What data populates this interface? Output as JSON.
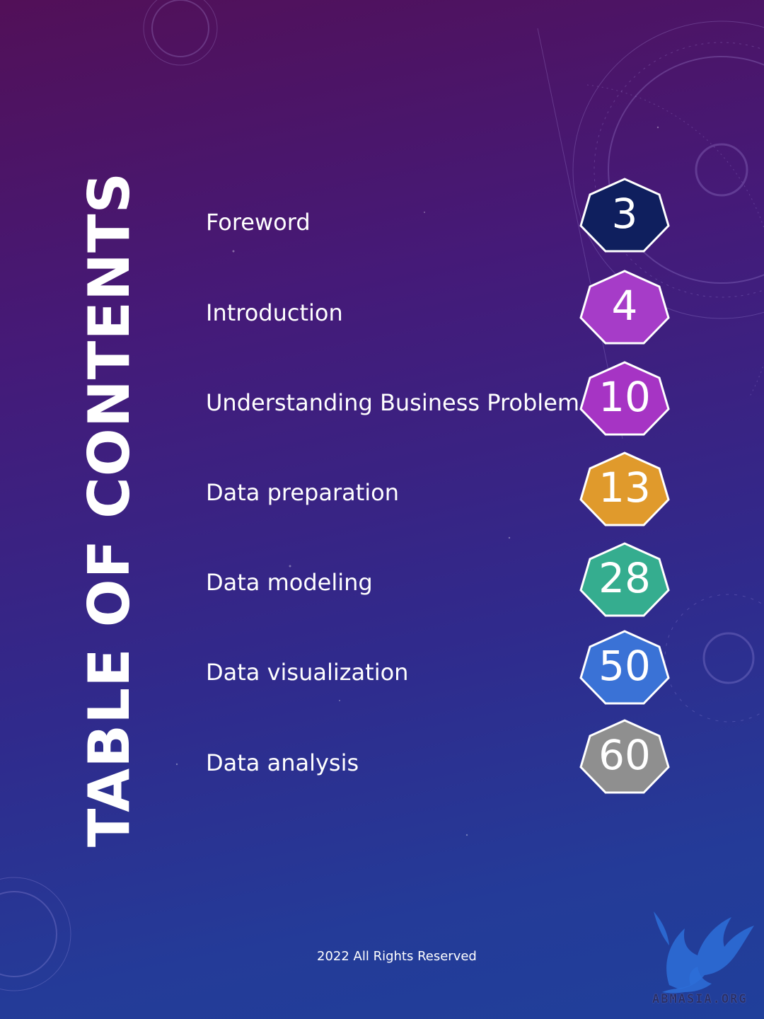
{
  "page": {
    "title": "TABLE OF CONTENTS",
    "footer": "2022 All Rights Reserved",
    "brand": "ABMASIA.ORG"
  },
  "toc": [
    {
      "label": "Foreword",
      "page": "3",
      "color": "#0f1f5e"
    },
    {
      "label": "Introduction",
      "page": "4",
      "color": "#a63cc8"
    },
    {
      "label": "Understanding Business Problem",
      "page": "10",
      "color": "#a634c4"
    },
    {
      "label": "Data preparation",
      "page": "13",
      "color": "#e09a2c"
    },
    {
      "label": "Data modeling",
      "page": "28",
      "color": "#35ad8f"
    },
    {
      "label": "Data visualization",
      "page": "50",
      "color": "#3a72d6"
    },
    {
      "label": "Data analysis",
      "page": "60",
      "color": "#8f8f8f"
    }
  ],
  "icons": {
    "badge_shape": "heptagon-badge",
    "logo": "gryphon-logo-icon"
  }
}
